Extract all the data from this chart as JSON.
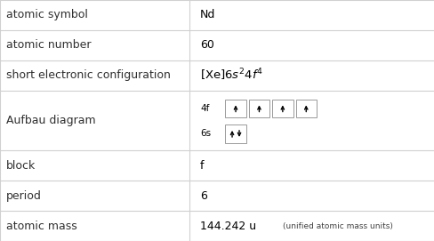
{
  "rows": [
    {
      "label": "atomic symbol",
      "value": "Nd",
      "type": "text"
    },
    {
      "label": "atomic number",
      "value": "60",
      "type": "text"
    },
    {
      "label": "short electronic configuration",
      "value": "",
      "type": "config"
    },
    {
      "label": "Aufbau diagram",
      "value": "",
      "type": "aufbau"
    },
    {
      "label": "block",
      "value": "f",
      "type": "text"
    },
    {
      "label": "period",
      "value": "6",
      "type": "text"
    },
    {
      "label": "atomic mass",
      "value": "144.242 u",
      "suffix": "(unified atomic mass units)",
      "type": "mass"
    }
  ],
  "row_heights": [
    1,
    1,
    1,
    2,
    1,
    1,
    1
  ],
  "col_split": 0.435,
  "bg_color": "#ffffff",
  "line_color": "#d0d0d0",
  "label_color": "#303030",
  "value_color": "#000000",
  "font_size": 9.0,
  "aufbau_4f_electrons": 4,
  "aufbau_6s_electrons": 2
}
